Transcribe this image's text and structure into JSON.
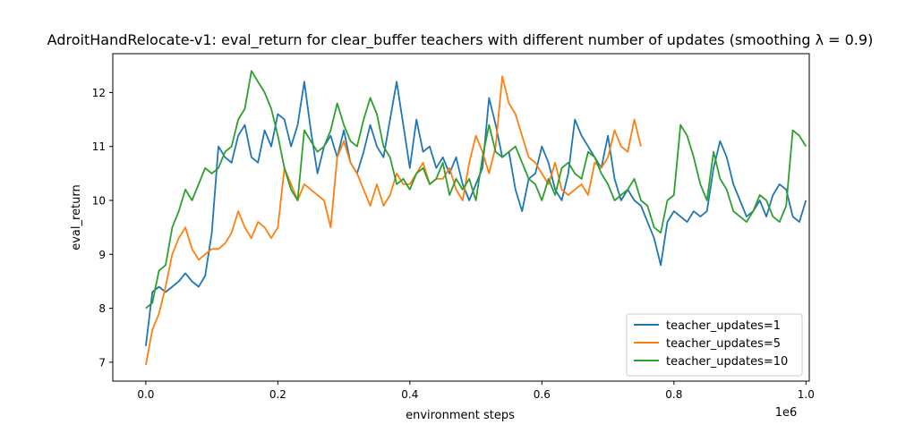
{
  "chart_data": {
    "type": "line",
    "title": "AdroitHandRelocate-v1: eval_return for clear_buffer teachers with different number of updates (smoothing λ = 0.9)",
    "xlabel": "environment steps",
    "ylabel": "eval_return",
    "x_offset_label": "1e6",
    "xlim": [
      -0.05,
      1.005
    ],
    "ylim": [
      6.65,
      12.72
    ],
    "xticks": [
      0.0,
      0.2,
      0.4,
      0.6,
      0.8,
      1.0
    ],
    "xtick_labels": [
      "0.0",
      "0.2",
      "0.4",
      "0.6",
      "0.8",
      "1.0"
    ],
    "yticks": [
      7,
      8,
      9,
      10,
      11,
      12
    ],
    "ytick_labels": [
      "7",
      "8",
      "9",
      "10",
      "11",
      "12"
    ],
    "grid": false,
    "legend_position": "lower-right",
    "series": [
      {
        "name": "teacher_updates=1",
        "color": "#1f77b4",
        "x": [
          0.0,
          0.01,
          0.02,
          0.03,
          0.04,
          0.05,
          0.06,
          0.07,
          0.08,
          0.09,
          0.1,
          0.11,
          0.12,
          0.13,
          0.14,
          0.15,
          0.16,
          0.17,
          0.18,
          0.19,
          0.2,
          0.21,
          0.22,
          0.23,
          0.24,
          0.25,
          0.26,
          0.27,
          0.28,
          0.29,
          0.3,
          0.31,
          0.32,
          0.33,
          0.34,
          0.35,
          0.36,
          0.37,
          0.38,
          0.39,
          0.4,
          0.41,
          0.42,
          0.43,
          0.44,
          0.45,
          0.46,
          0.47,
          0.48,
          0.49,
          0.5,
          0.51,
          0.52,
          0.53,
          0.54,
          0.55,
          0.56,
          0.57,
          0.58,
          0.59,
          0.6,
          0.61,
          0.62,
          0.63,
          0.64,
          0.65,
          0.66,
          0.67,
          0.68,
          0.69,
          0.7,
          0.71,
          0.72,
          0.73,
          0.74,
          0.75,
          0.76,
          0.77,
          0.78,
          0.79,
          0.8,
          0.81,
          0.82,
          0.83,
          0.84,
          0.85,
          0.86,
          0.87,
          0.88,
          0.89,
          0.9,
          0.91,
          0.92,
          0.93,
          0.94,
          0.95,
          0.96,
          0.97,
          0.98,
          0.99,
          1.0
        ],
        "y": [
          7.3,
          8.3,
          8.4,
          8.3,
          8.4,
          8.5,
          8.65,
          8.5,
          8.4,
          8.6,
          9.4,
          11.0,
          10.8,
          10.7,
          11.2,
          11.4,
          10.8,
          10.7,
          11.3,
          11.0,
          11.6,
          11.5,
          11.0,
          11.4,
          12.2,
          11.3,
          10.5,
          11.0,
          11.2,
          10.8,
          11.3,
          10.7,
          10.5,
          10.9,
          11.4,
          11.0,
          10.8,
          11.5,
          12.2,
          11.4,
          10.6,
          11.5,
          10.9,
          11.0,
          10.6,
          10.8,
          10.5,
          10.8,
          10.3,
          10.0,
          10.3,
          10.6,
          11.9,
          11.4,
          10.8,
          10.9,
          10.2,
          9.8,
          10.4,
          10.5,
          11.0,
          10.7,
          10.2,
          10.0,
          10.5,
          11.5,
          11.2,
          11.0,
          10.8,
          10.6,
          11.2,
          10.4,
          10.0,
          10.2,
          10.0,
          9.9,
          9.6,
          9.3,
          8.8,
          9.6,
          9.8,
          9.7,
          9.6,
          9.8,
          9.7,
          9.8,
          10.6,
          11.1,
          10.8,
          10.3,
          10.0,
          9.7,
          9.8,
          10.0,
          9.7,
          10.1,
          10.3,
          10.2,
          9.7,
          9.6,
          10.0
        ]
      },
      {
        "name": "teacher_updates=5",
        "color": "#ff7f0e",
        "x": [
          0.0,
          0.01,
          0.02,
          0.03,
          0.04,
          0.05,
          0.06,
          0.07,
          0.08,
          0.09,
          0.1,
          0.11,
          0.12,
          0.13,
          0.14,
          0.15,
          0.16,
          0.17,
          0.18,
          0.19,
          0.2,
          0.21,
          0.22,
          0.23,
          0.24,
          0.25,
          0.26,
          0.27,
          0.28,
          0.29,
          0.3,
          0.31,
          0.32,
          0.33,
          0.34,
          0.35,
          0.36,
          0.37,
          0.38,
          0.39,
          0.4,
          0.41,
          0.42,
          0.43,
          0.44,
          0.45,
          0.46,
          0.47,
          0.48,
          0.49,
          0.5,
          0.51,
          0.52,
          0.53,
          0.54,
          0.55,
          0.56,
          0.57,
          0.58,
          0.59,
          0.6,
          0.61,
          0.62,
          0.63,
          0.64,
          0.65,
          0.66,
          0.67,
          0.68,
          0.69,
          0.7,
          0.71,
          0.72,
          0.73,
          0.74,
          0.75
        ],
        "y": [
          6.95,
          7.6,
          7.9,
          8.4,
          9.0,
          9.3,
          9.5,
          9.1,
          8.9,
          9.0,
          9.1,
          9.1,
          9.2,
          9.4,
          9.8,
          9.5,
          9.3,
          9.6,
          9.5,
          9.3,
          9.5,
          10.6,
          10.3,
          10.0,
          10.3,
          10.2,
          10.1,
          10.0,
          9.5,
          10.8,
          11.1,
          10.7,
          10.5,
          10.2,
          9.9,
          10.3,
          9.9,
          10.1,
          10.5,
          10.3,
          10.3,
          10.5,
          10.7,
          10.3,
          10.4,
          10.4,
          10.6,
          10.2,
          10.0,
          10.7,
          11.2,
          10.9,
          10.5,
          11.0,
          12.3,
          11.8,
          11.6,
          11.2,
          10.8,
          10.7,
          10.5,
          10.3,
          10.7,
          10.2,
          10.1,
          10.2,
          10.3,
          10.1,
          10.7,
          10.6,
          10.8,
          11.3,
          11.0,
          10.9,
          11.5,
          11.0
        ]
      },
      {
        "name": "teacher_updates=10",
        "color": "#2ca02c",
        "x": [
          0.0,
          0.01,
          0.02,
          0.03,
          0.04,
          0.05,
          0.06,
          0.07,
          0.08,
          0.09,
          0.1,
          0.11,
          0.12,
          0.13,
          0.14,
          0.15,
          0.16,
          0.17,
          0.18,
          0.19,
          0.2,
          0.21,
          0.22,
          0.23,
          0.24,
          0.25,
          0.26,
          0.27,
          0.28,
          0.29,
          0.3,
          0.31,
          0.32,
          0.33,
          0.34,
          0.35,
          0.36,
          0.37,
          0.38,
          0.39,
          0.4,
          0.41,
          0.42,
          0.43,
          0.44,
          0.45,
          0.46,
          0.47,
          0.48,
          0.49,
          0.5,
          0.51,
          0.52,
          0.53,
          0.54,
          0.55,
          0.56,
          0.57,
          0.58,
          0.59,
          0.6,
          0.61,
          0.62,
          0.63,
          0.64,
          0.65,
          0.66,
          0.67,
          0.68,
          0.69,
          0.7,
          0.71,
          0.72,
          0.73,
          0.74,
          0.75,
          0.76,
          0.77,
          0.78,
          0.79,
          0.8,
          0.81,
          0.82,
          0.83,
          0.84,
          0.85,
          0.86,
          0.87,
          0.88,
          0.89,
          0.9,
          0.91,
          0.92,
          0.93,
          0.94,
          0.95,
          0.96,
          0.97,
          0.98,
          0.99,
          1.0
        ],
        "y": [
          8.0,
          8.1,
          8.7,
          8.8,
          9.5,
          9.8,
          10.2,
          10.0,
          10.3,
          10.6,
          10.5,
          10.6,
          10.9,
          11.0,
          11.5,
          11.7,
          12.4,
          12.2,
          12.0,
          11.7,
          11.2,
          10.6,
          10.2,
          10.0,
          11.3,
          11.1,
          10.9,
          11.0,
          11.3,
          11.8,
          11.4,
          11.1,
          11.0,
          11.5,
          11.9,
          11.6,
          11.0,
          10.8,
          10.3,
          10.4,
          10.2,
          10.5,
          10.6,
          10.3,
          10.4,
          10.7,
          10.1,
          10.4,
          10.2,
          10.4,
          10.0,
          10.8,
          11.4,
          10.9,
          10.8,
          10.9,
          11.0,
          10.7,
          10.4,
          10.3,
          10.0,
          10.4,
          10.1,
          10.6,
          10.7,
          10.5,
          10.4,
          10.9,
          10.8,
          10.5,
          10.3,
          10.0,
          10.1,
          10.2,
          10.4,
          10.0,
          9.9,
          9.5,
          9.4,
          10.0,
          10.1,
          11.4,
          11.2,
          10.8,
          10.3,
          10.0,
          10.9,
          10.4,
          10.2,
          9.8,
          9.7,
          9.6,
          9.8,
          10.1,
          10.0,
          9.7,
          9.6,
          9.9,
          11.3,
          11.2,
          11.0
        ]
      }
    ]
  }
}
